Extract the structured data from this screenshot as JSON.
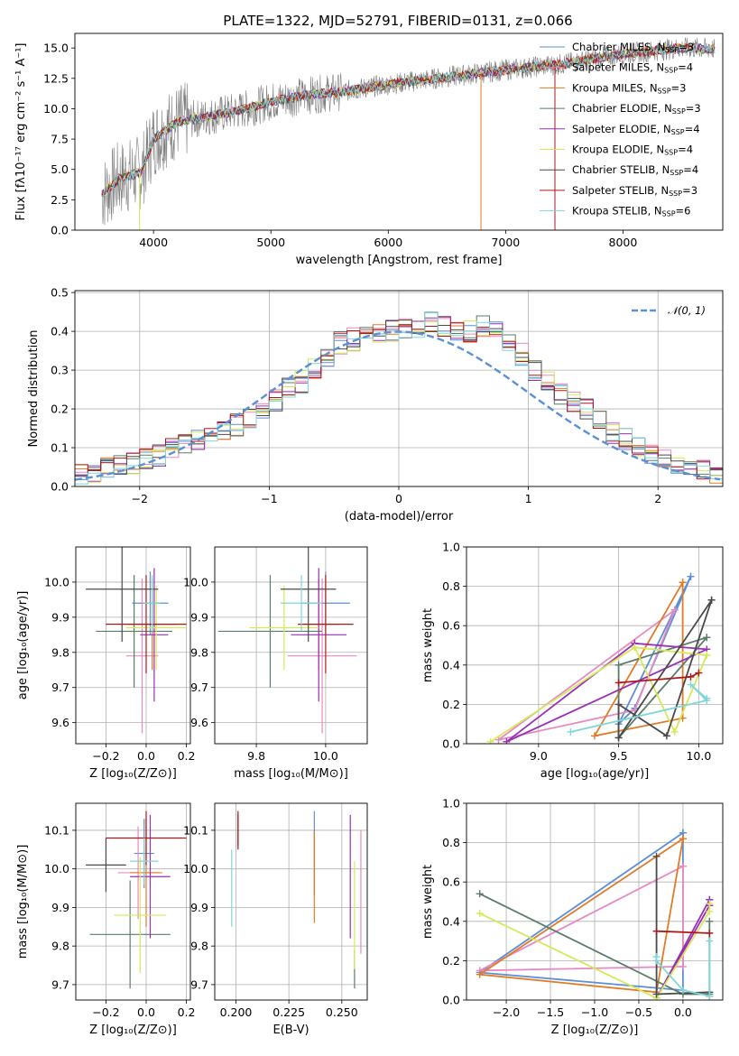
{
  "figure_title": "PLATE=1322, MJD=52791, FIBERID=0131, z=0.066",
  "colors": {
    "grid": "#b0b0b0",
    "data_gray": "#808080",
    "normal_curve": "#5b8fd6"
  },
  "chart_data": [
    {
      "id": "spectrum",
      "type": "line",
      "title": "PLATE=1322, MJD=52791, FIBERID=0131, z=0.066",
      "xlabel": "wavelength [Angstrom, rest frame]",
      "ylabel": "Flux [fλ10⁻¹⁷ erg cm⁻² s⁻¹ A⁻¹]",
      "xlim": [
        3330,
        8850
      ],
      "ylim": [
        0,
        16.2
      ],
      "xticks": [
        4000,
        5000,
        6000,
        7000,
        8000
      ],
      "yticks": [
        "0.0",
        "2.5",
        "5.0",
        "7.5",
        "10.0",
        "12.5",
        "15.0"
      ],
      "grid": false,
      "legend_position": "right",
      "data_color": "#808080",
      "approx_continuum": {
        "x": [
          3550,
          3700,
          3900,
          4000,
          4200,
          4500,
          4800,
          5000,
          5300,
          5600,
          6000,
          6500,
          7000,
          7500,
          8000,
          8500,
          8800
        ],
        "y": [
          2.8,
          4.2,
          4.8,
          7.5,
          8.9,
          9.4,
          10.0,
          10.6,
          11.1,
          11.4,
          12.0,
          12.6,
          13.2,
          13.7,
          14.5,
          15.0,
          14.9
        ]
      },
      "series": [
        {
          "name": "Chabrier MILES, N_SSP=3",
          "name_main": "Chabrier MILES, N",
          "name_sub": "SSP",
          "name_end": "=3",
          "color": "#5b8fd6"
        },
        {
          "name": "Salpeter MILES, N_SSP=4",
          "name_main": "Salpeter MILES, N",
          "name_sub": "SSP",
          "name_end": "=4",
          "color": "#e88ac2"
        },
        {
          "name": "Kroupa MILES, N_SSP=3",
          "name_main": "Kroupa MILES, N",
          "name_sub": "SSP",
          "name_end": "=3",
          "color": "#e07b28"
        },
        {
          "name": "Chabrier ELODIE, N_SSP=3",
          "name_main": "Chabrier ELODIE, N",
          "name_sub": "SSP",
          "name_end": "=3",
          "color": "#5a7d6a"
        },
        {
          "name": "Salpeter ELODIE, N_SSP=4",
          "name_main": "Salpeter ELODIE, N",
          "name_sub": "SSP",
          "name_end": "=4",
          "color": "#9a2fb5"
        },
        {
          "name": "Kroupa ELODIE, N_SSP=4",
          "name_main": "Kroupa ELODIE, N",
          "name_sub": "SSP",
          "name_end": "=4",
          "color": "#d6e85a"
        },
        {
          "name": "Chabrier STELIB, N_SSP=4",
          "name_main": "Chabrier STELIB, N",
          "name_sub": "SSP",
          "name_end": "=4",
          "color": "#4a4a4a"
        },
        {
          "name": "Salpeter STELIB, N_SSP=3",
          "name_main": "Salpeter STELIB, N",
          "name_sub": "SSP",
          "name_end": "=3",
          "color": "#b01818"
        },
        {
          "name": "Kroupa STELIB, N_SSP=6",
          "name_main": "Kroupa STELIB, N",
          "name_sub": "SSP",
          "name_end": "=6",
          "color": "#7fd6da"
        }
      ]
    },
    {
      "id": "residuals",
      "type": "histogram",
      "xlabel": "(data-model)/error",
      "ylabel": "Normed distribution",
      "xlim": [
        -2.5,
        2.5
      ],
      "ylim": [
        0,
        0.505
      ],
      "xticks": [
        "−2",
        "−1",
        "0",
        "1",
        "2"
      ],
      "yticks": [
        "0.0",
        "0.1",
        "0.2",
        "0.3",
        "0.4",
        "0.5"
      ],
      "grid": true,
      "bin_width": 0.1,
      "legend_position": "top-right",
      "curve": {
        "name": "N(0,1)",
        "label_main": "𝒩(0, 1)",
        "mean": 0,
        "sigma": 1,
        "color": "#5b8fd6"
      },
      "approx_hist": [
        0.03,
        0.04,
        0.05,
        0.05,
        0.06,
        0.07,
        0.08,
        0.1,
        0.11,
        0.12,
        0.13,
        0.14,
        0.16,
        0.18,
        0.2,
        0.22,
        0.25,
        0.27,
        0.3,
        0.33,
        0.37,
        0.38,
        0.39,
        0.4,
        0.4,
        0.41,
        0.41,
        0.42,
        0.41,
        0.4,
        0.4,
        0.41,
        0.4,
        0.37,
        0.34,
        0.3,
        0.27,
        0.24,
        0.22,
        0.2,
        0.17,
        0.14,
        0.12,
        0.1,
        0.08,
        0.07,
        0.06,
        0.05,
        0.04,
        0.03
      ]
    },
    {
      "id": "age_vs_Z",
      "type": "errorbar",
      "xlabel": "Z [log₁₀(Z/Z⊙)]",
      "ylabel": "age  [log₁₀(age/yr)]",
      "xlim": [
        -0.35,
        0.22
      ],
      "ylim": [
        9.54,
        10.1
      ],
      "xticks": [
        "−0.2",
        "0.0",
        "0.2"
      ],
      "xtick_values": [
        -0.2,
        0.0,
        0.2
      ],
      "yticks": [
        "9.6",
        "9.7",
        "9.8",
        "9.9",
        "10.0"
      ],
      "ytick_values": [
        9.6,
        9.7,
        9.8,
        9.9,
        10.0
      ],
      "grid": true,
      "points": [
        {
          "x": 0.02,
          "y": 9.94,
          "xerr": 0.09,
          "yerr": 0.09,
          "color": "#5b8fd6"
        },
        {
          "x": -0.02,
          "y": 9.79,
          "xerr": 0.08,
          "yerr": 0.22,
          "color": "#e88ac2"
        },
        {
          "x": 0.03,
          "y": 9.88,
          "xerr": 0.12,
          "yerr": 0.13,
          "color": "#e07b28"
        },
        {
          "x": -0.06,
          "y": 9.86,
          "xerr": 0.19,
          "yerr": 0.16,
          "color": "#5a7d6a"
        },
        {
          "x": 0.04,
          "y": 9.85,
          "xerr": 0.07,
          "yerr": 0.19,
          "color": "#9a2fb5"
        },
        {
          "x": 0.05,
          "y": 9.87,
          "xerr": 0.15,
          "yerr": 0.12,
          "color": "#d6e85a"
        },
        {
          "x": -0.12,
          "y": 9.98,
          "xerr": 0.18,
          "yerr": 0.15,
          "color": "#4a4a4a"
        },
        {
          "x": 0.0,
          "y": 9.88,
          "xerr": 0.2,
          "yerr": 0.14,
          "color": "#b01818"
        },
        {
          "x": 0.03,
          "y": 9.94,
          "xerr": 0.04,
          "yerr": 0.08,
          "color": "#7fd6da"
        }
      ]
    },
    {
      "id": "age_vs_mass",
      "type": "errorbar",
      "xlabel": "mass [log₁₀(M/M⊙)]",
      "ylabel": "",
      "xlim": [
        9.68,
        10.12
      ],
      "ylim": [
        9.54,
        10.1
      ],
      "xticks": [
        "9.8",
        "10.0"
      ],
      "xtick_values": [
        9.8,
        10.0
      ],
      "yticks": [
        "9.6",
        "9.7",
        "9.8",
        "9.9",
        "10.0"
      ],
      "ytick_values": [
        9.6,
        9.7,
        9.8,
        9.9,
        10.0
      ],
      "grid": true,
      "points": [
        {
          "x": 10.0,
          "y": 9.94,
          "xerr": 0.07,
          "yerr": 0.09,
          "color": "#5b8fd6"
        },
        {
          "x": 9.99,
          "y": 9.79,
          "xerr": 0.1,
          "yerr": 0.22,
          "color": "#e88ac2"
        },
        {
          "x": 9.98,
          "y": 9.88,
          "xerr": 0.06,
          "yerr": 0.13,
          "color": "#e07b28"
        },
        {
          "x": 9.84,
          "y": 9.86,
          "xerr": 0.15,
          "yerr": 0.16,
          "color": "#5a7d6a"
        },
        {
          "x": 9.98,
          "y": 9.85,
          "xerr": 0.08,
          "yerr": 0.19,
          "color": "#9a2fb5"
        },
        {
          "x": 9.88,
          "y": 9.87,
          "xerr": 0.1,
          "yerr": 0.12,
          "color": "#d6e85a"
        },
        {
          "x": 9.95,
          "y": 9.98,
          "xerr": 0.08,
          "yerr": 0.15,
          "color": "#4a4a4a"
        },
        {
          "x": 10.0,
          "y": 9.88,
          "xerr": 0.08,
          "yerr": 0.14,
          "color": "#b01818"
        },
        {
          "x": 9.93,
          "y": 9.94,
          "xerr": 0.06,
          "yerr": 0.08,
          "color": "#7fd6da"
        }
      ]
    },
    {
      "id": "massweight_vs_age",
      "type": "line",
      "xlabel": "age  [log₁₀(age/yr)]",
      "ylabel": "mass weight",
      "xlim": [
        8.55,
        10.15
      ],
      "ylim": [
        0,
        1.0
      ],
      "xticks": [
        "9.0",
        "9.5",
        "10.0"
      ],
      "xtick_values": [
        9.0,
        9.5,
        10.0
      ],
      "yticks": [
        "0.0",
        "0.2",
        "0.4",
        "0.6",
        "0.8",
        "1.0"
      ],
      "ytick_values": [
        0.0,
        0.2,
        0.4,
        0.6,
        0.8,
        1.0
      ],
      "grid": true,
      "series": [
        {
          "color": "#5b8fd6",
          "x": [
            9.95,
            9.5,
            9.6,
            9.95
          ],
          "y": [
            0.85,
            0.1,
            0.18,
            0.85
          ]
        },
        {
          "color": "#e88ac2",
          "x": [
            9.85,
            8.75,
            9.6,
            9.85
          ],
          "y": [
            0.68,
            0.02,
            0.17,
            0.68
          ]
        },
        {
          "color": "#e07b28",
          "x": [
            9.9,
            9.35,
            9.9,
            9.9
          ],
          "y": [
            0.82,
            0.04,
            0.13,
            0.82
          ]
        },
        {
          "color": "#5a7d6a",
          "x": [
            10.05,
            9.5,
            9.5,
            10.05
          ],
          "y": [
            0.54,
            0.03,
            0.4,
            0.54
          ]
        },
        {
          "color": "#9a2fb5",
          "x": [
            9.6,
            8.8,
            10.05,
            9.6
          ],
          "y": [
            0.51,
            0.01,
            0.48,
            0.51
          ]
        },
        {
          "color": "#d6e85a",
          "x": [
            10.05,
            9.6,
            9.85,
            10.05,
            9.6,
            8.7
          ],
          "y": [
            0.45,
            0.49,
            0.06,
            0.45,
            0.49,
            0.01
          ]
        },
        {
          "color": "#4a4a4a",
          "x": [
            10.08,
            9.5,
            9.5,
            9.8,
            10.08
          ],
          "y": [
            0.73,
            0.03,
            0.2,
            0.04,
            0.73
          ]
        },
        {
          "color": "#b01818",
          "x": [
            9.5,
            9.95,
            10.0
          ],
          "y": [
            0.31,
            0.34,
            0.36
          ]
        },
        {
          "color": "#7fd6da",
          "x": [
            10.05,
            9.95,
            10.05,
            9.2
          ],
          "y": [
            0.23,
            0.3,
            0.22,
            0.06
          ]
        }
      ]
    },
    {
      "id": "mass_vs_Z",
      "type": "errorbar",
      "xlabel": "Z [log₁₀(Z/Z⊙)]",
      "ylabel": "mass [log₁₀(M/M⊙)]",
      "xlim": [
        -0.35,
        0.22
      ],
      "ylim": [
        9.66,
        10.17
      ],
      "xticks": [
        "−0.2",
        "0.0",
        "0.2"
      ],
      "xtick_values": [
        -0.2,
        0.0,
        0.2
      ],
      "yticks": [
        "9.7",
        "9.8",
        "9.9",
        "10.0",
        "10.1"
      ],
      "ytick_values": [
        9.7,
        9.8,
        9.9,
        10.0,
        10.1
      ],
      "grid": true,
      "points": [
        {
          "x": -0.01,
          "y": 10.04,
          "xerr": 0.05,
          "yerr": 0.09,
          "color": "#5b8fd6"
        },
        {
          "x": -0.04,
          "y": 9.99,
          "xerr": 0.1,
          "yerr": 0.12,
          "color": "#e88ac2"
        },
        {
          "x": 0.0,
          "y": 9.99,
          "xerr": 0.08,
          "yerr": 0.14,
          "color": "#e07b28"
        },
        {
          "x": -0.08,
          "y": 9.83,
          "xerr": 0.2,
          "yerr": 0.14,
          "color": "#5a7d6a"
        },
        {
          "x": 0.02,
          "y": 9.98,
          "xerr": 0.1,
          "yerr": 0.16,
          "color": "#9a2fb5"
        },
        {
          "x": -0.03,
          "y": 9.88,
          "xerr": 0.13,
          "yerr": 0.15,
          "color": "#d6e85a"
        },
        {
          "x": -0.2,
          "y": 10.01,
          "xerr": 0.1,
          "yerr": 0.07,
          "color": "#4a4a4a"
        },
        {
          "x": 0.0,
          "y": 10.08,
          "xerr": 0.2,
          "yerr": 0.07,
          "color": "#b01818"
        },
        {
          "x": -0.01,
          "y": 10.02,
          "xerr": 0.07,
          "yerr": 0.06,
          "color": "#7fd6da"
        }
      ]
    },
    {
      "id": "mass_vs_EBV",
      "type": "errorbar",
      "xlabel": "E(B-V)",
      "ylabel": "",
      "xlim": [
        0.19,
        0.262
      ],
      "ylim": [
        9.66,
        10.17
      ],
      "xticks": [
        "0.200",
        "0.225",
        "0.250"
      ],
      "xtick_values": [
        0.2,
        0.225,
        0.25
      ],
      "yticks": [
        "9.7",
        "9.8",
        "9.9",
        "10.0",
        "10.1"
      ],
      "ytick_values": [
        9.7,
        9.8,
        9.9,
        10.0,
        10.1
      ],
      "grid": true,
      "points": [
        {
          "x": 0.237,
          "y": 10.04,
          "xerr": 0,
          "yerr": 0.11,
          "color": "#5b8fd6"
        },
        {
          "x": 0.259,
          "y": 9.94,
          "xerr": 0,
          "yerr": 0.16,
          "color": "#e88ac2"
        },
        {
          "x": 0.237,
          "y": 9.98,
          "xerr": 0,
          "yerr": 0.12,
          "color": "#e07b28"
        },
        {
          "x": 0.256,
          "y": 9.74,
          "xerr": 0,
          "yerr": 0.05,
          "color": "#5a7d6a"
        },
        {
          "x": 0.254,
          "y": 9.98,
          "xerr": 0,
          "yerr": 0.16,
          "color": "#9a2fb5"
        },
        {
          "x": 0.256,
          "y": 9.88,
          "xerr": 0,
          "yerr": 0.14,
          "color": "#d6e85a"
        },
        {
          "x": 0.201,
          "y": 10.1,
          "xerr": 0,
          "yerr": 0.04,
          "color": "#4a4a4a"
        },
        {
          "x": 0.201,
          "y": 10.1,
          "xerr": 0,
          "yerr": 0.05,
          "color": "#b01818"
        },
        {
          "x": 0.198,
          "y": 9.95,
          "xerr": 0,
          "yerr": 0.1,
          "color": "#7fd6da"
        }
      ]
    },
    {
      "id": "massweight_vs_Z",
      "type": "line",
      "xlabel": "Z [log₁₀(Z/Z⊙)]",
      "ylabel": "mass weight",
      "xlim": [
        -2.45,
        0.45
      ],
      "ylim": [
        0,
        1.0
      ],
      "xticks": [
        "−2.0",
        "−1.5",
        "−1.0",
        "−0.5",
        "0.0"
      ],
      "xtick_values": [
        -2.0,
        -1.5,
        -1.0,
        -0.5,
        0.0
      ],
      "yticks": [
        "0.0",
        "0.2",
        "0.4",
        "0.6",
        "0.8",
        "1.0"
      ],
      "ytick_values": [
        0.0,
        0.2,
        0.4,
        0.6,
        0.8,
        1.0
      ],
      "grid": true,
      "series": [
        {
          "color": "#5b8fd6",
          "x": [
            0.0,
            -2.3,
            0.0,
            0.0
          ],
          "y": [
            0.85,
            0.14,
            0.05,
            0.85
          ]
        },
        {
          "color": "#e88ac2",
          "x": [
            0.0,
            -2.3,
            0.0,
            0.0
          ],
          "y": [
            0.68,
            0.15,
            0.17,
            0.68
          ]
        },
        {
          "color": "#e07b28",
          "x": [
            0.0,
            -2.3,
            -0.3,
            0.0
          ],
          "y": [
            0.82,
            0.13,
            0.04,
            0.82
          ]
        },
        {
          "color": "#5a7d6a",
          "x": [
            -2.3,
            0.0,
            0.3,
            0.3
          ],
          "y": [
            0.54,
            0.03,
            0.03,
            0.4
          ]
        },
        {
          "color": "#9a2fb5",
          "x": [
            0.3,
            -0.3,
            0.3,
            0.3
          ],
          "y": [
            0.51,
            0.01,
            0.48,
            0.51
          ]
        },
        {
          "color": "#d6e85a",
          "x": [
            -2.3,
            -0.3,
            0.3,
            0.3
          ],
          "y": [
            0.44,
            0.01,
            0.45,
            0.49
          ]
        },
        {
          "color": "#4a4a4a",
          "x": [
            -0.3,
            -0.3,
            0.3,
            0.3
          ],
          "y": [
            0.73,
            0.03,
            0.04,
            0.02
          ]
        },
        {
          "color": "#b01818",
          "x": [
            -0.3,
            0.3
          ],
          "y": [
            0.35,
            0.34
          ]
        },
        {
          "color": "#7fd6da",
          "x": [
            -0.3,
            -0.3,
            0.0,
            0.3,
            0.3
          ],
          "y": [
            0.22,
            0.2,
            0.05,
            0.02,
            0.3
          ]
        }
      ]
    }
  ]
}
